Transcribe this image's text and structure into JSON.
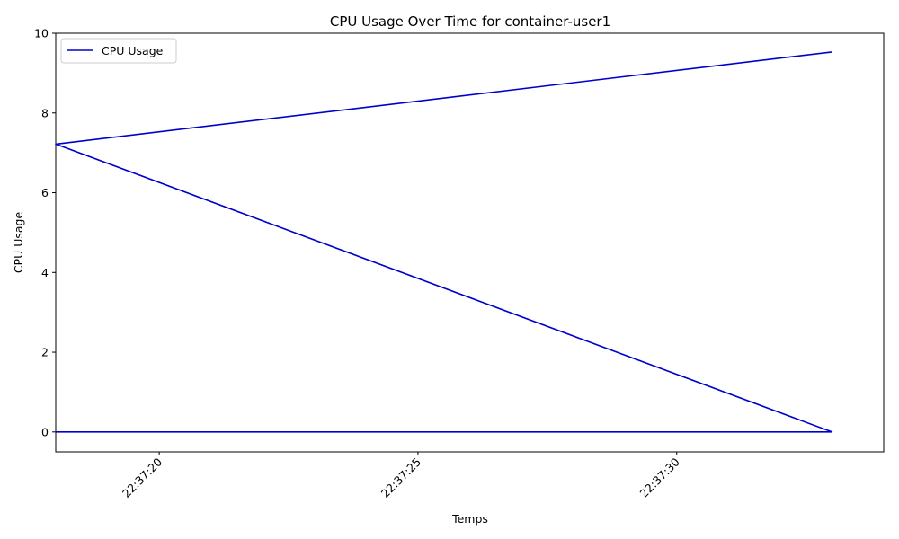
{
  "chart_data": {
    "type": "line",
    "title": "CPU Usage Over Time for container-user1",
    "xlabel": "Temps",
    "ylabel": "CPU Usage",
    "x_ticks": [
      "22:37:20",
      "22:37:25",
      "22:37:30"
    ],
    "y_ticks": [
      "0",
      "2",
      "4",
      "6",
      "8",
      "10"
    ],
    "xlim": [
      "22:37:18",
      "22:37:34"
    ],
    "ylim": [
      -0.5,
      10
    ],
    "grid": false,
    "legend_position": "top-left",
    "series": [
      {
        "name": "CPU Usage",
        "color": "#0000cd",
        "points": [
          {
            "x": "22:37:18",
            "y": 0.0
          },
          {
            "x": "22:37:33",
            "y": 0.0
          },
          {
            "x": "22:37:18",
            "y": 7.22
          },
          {
            "x": "22:37:33",
            "y": 9.53
          }
        ]
      }
    ]
  }
}
